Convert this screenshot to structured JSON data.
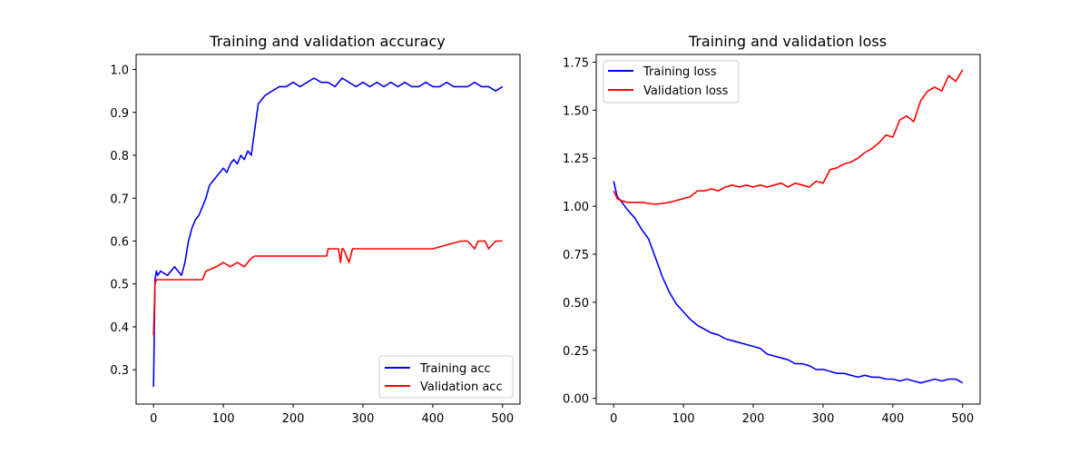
{
  "chart_data": [
    {
      "type": "line",
      "title": "Training and validation accuracy",
      "xlabel": "",
      "ylabel": "",
      "xlim": [
        -25,
        525
      ],
      "ylim": [
        0.22,
        1.035
      ],
      "x_ticks": [
        0,
        100,
        200,
        300,
        400,
        500
      ],
      "y_ticks": [
        0.3,
        0.4,
        0.5,
        0.6,
        0.7,
        0.8,
        0.9,
        1.0
      ],
      "x_tick_labels": [
        "0",
        "100",
        "200",
        "300",
        "400",
        "500"
      ],
      "y_tick_labels": [
        "0.3",
        "0.4",
        "0.5",
        "0.6",
        "0.7",
        "0.8",
        "0.9",
        "1.0"
      ],
      "grid": false,
      "legend_position": "lower-right",
      "series": [
        {
          "name": "Training acc",
          "color": "#0000ff",
          "x": [
            0,
            2,
            4,
            6,
            10,
            20,
            30,
            40,
            45,
            50,
            55,
            60,
            65,
            70,
            75,
            80,
            85,
            90,
            95,
            100,
            105,
            110,
            115,
            120,
            125,
            130,
            135,
            140,
            145,
            150,
            155,
            160,
            170,
            180,
            190,
            200,
            210,
            220,
            230,
            240,
            250,
            260,
            270,
            280,
            290,
            300,
            310,
            320,
            330,
            340,
            350,
            360,
            370,
            380,
            390,
            400,
            410,
            420,
            430,
            440,
            450,
            460,
            470,
            480,
            490,
            500
          ],
          "y": [
            0.26,
            0.51,
            0.53,
            0.52,
            0.53,
            0.52,
            0.54,
            0.52,
            0.55,
            0.6,
            0.63,
            0.65,
            0.66,
            0.68,
            0.7,
            0.73,
            0.74,
            0.75,
            0.76,
            0.77,
            0.76,
            0.78,
            0.79,
            0.78,
            0.8,
            0.79,
            0.81,
            0.8,
            0.86,
            0.92,
            0.93,
            0.94,
            0.95,
            0.96,
            0.96,
            0.97,
            0.96,
            0.97,
            0.98,
            0.97,
            0.97,
            0.96,
            0.98,
            0.97,
            0.96,
            0.97,
            0.96,
            0.97,
            0.96,
            0.97,
            0.96,
            0.97,
            0.96,
            0.96,
            0.97,
            0.96,
            0.96,
            0.97,
            0.96,
            0.96,
            0.96,
            0.97,
            0.96,
            0.96,
            0.95,
            0.96
          ]
        },
        {
          "name": "Validation acc",
          "color": "#ff0000",
          "x": [
            0,
            2,
            4,
            6,
            70,
            75,
            90,
            100,
            110,
            120,
            130,
            140,
            145,
            180,
            200,
            220,
            248,
            250,
            265,
            268,
            270,
            272,
            280,
            285,
            300,
            320,
            400,
            440,
            450,
            460,
            465,
            475,
            480,
            490,
            500
          ],
          "y": [
            0.38,
            0.5,
            0.51,
            0.51,
            0.51,
            0.53,
            0.54,
            0.55,
            0.54,
            0.55,
            0.54,
            0.56,
            0.565,
            0.565,
            0.565,
            0.565,
            0.565,
            0.582,
            0.582,
            0.55,
            0.582,
            0.582,
            0.55,
            0.582,
            0.582,
            0.582,
            0.582,
            0.6,
            0.6,
            0.582,
            0.6,
            0.6,
            0.582,
            0.6,
            0.6
          ]
        }
      ]
    },
    {
      "type": "line",
      "title": "Training and validation loss",
      "xlabel": "",
      "ylabel": "",
      "xlim": [
        -25,
        525
      ],
      "ylim": [
        -0.03,
        1.79
      ],
      "x_ticks": [
        0,
        100,
        200,
        300,
        400,
        500
      ],
      "y_ticks": [
        0.0,
        0.25,
        0.5,
        0.75,
        1.0,
        1.25,
        1.5,
        1.75
      ],
      "x_tick_labels": [
        "0",
        "100",
        "200",
        "300",
        "400",
        "500"
      ],
      "y_tick_labels": [
        "0.00",
        "0.25",
        "0.50",
        "0.75",
        "1.00",
        "1.25",
        "1.50",
        "1.75"
      ],
      "grid": false,
      "legend_position": "upper-left",
      "series": [
        {
          "name": "Training loss",
          "color": "#0000ff",
          "x": [
            0,
            5,
            10,
            20,
            30,
            40,
            50,
            60,
            70,
            80,
            90,
            100,
            110,
            120,
            130,
            140,
            150,
            160,
            170,
            180,
            190,
            200,
            210,
            220,
            230,
            240,
            250,
            260,
            270,
            280,
            290,
            300,
            310,
            320,
            330,
            340,
            350,
            360,
            370,
            380,
            390,
            400,
            410,
            420,
            430,
            440,
            450,
            460,
            470,
            480,
            490,
            500
          ],
          "y": [
            1.13,
            1.05,
            1.03,
            0.98,
            0.94,
            0.88,
            0.83,
            0.73,
            0.63,
            0.55,
            0.49,
            0.45,
            0.41,
            0.38,
            0.36,
            0.34,
            0.33,
            0.31,
            0.3,
            0.29,
            0.28,
            0.27,
            0.26,
            0.23,
            0.22,
            0.21,
            0.2,
            0.18,
            0.18,
            0.17,
            0.15,
            0.15,
            0.14,
            0.13,
            0.13,
            0.12,
            0.11,
            0.12,
            0.11,
            0.11,
            0.1,
            0.1,
            0.09,
            0.1,
            0.09,
            0.08,
            0.09,
            0.1,
            0.09,
            0.1,
            0.1,
            0.08
          ]
        },
        {
          "name": "Validation loss",
          "color": "#ff0000",
          "x": [
            0,
            5,
            10,
            20,
            40,
            60,
            80,
            100,
            110,
            120,
            130,
            140,
            150,
            160,
            170,
            180,
            190,
            200,
            210,
            220,
            230,
            240,
            250,
            260,
            270,
            280,
            290,
            300,
            310,
            320,
            330,
            340,
            350,
            360,
            370,
            380,
            390,
            400,
            410,
            420,
            430,
            440,
            450,
            460,
            470,
            480,
            490,
            500
          ],
          "y": [
            1.08,
            1.04,
            1.03,
            1.02,
            1.02,
            1.01,
            1.02,
            1.04,
            1.05,
            1.08,
            1.08,
            1.09,
            1.08,
            1.1,
            1.11,
            1.1,
            1.11,
            1.1,
            1.11,
            1.1,
            1.11,
            1.12,
            1.1,
            1.12,
            1.11,
            1.1,
            1.13,
            1.12,
            1.19,
            1.2,
            1.22,
            1.23,
            1.25,
            1.28,
            1.3,
            1.33,
            1.37,
            1.36,
            1.45,
            1.47,
            1.44,
            1.55,
            1.6,
            1.62,
            1.6,
            1.68,
            1.65,
            1.71
          ]
        }
      ]
    }
  ]
}
